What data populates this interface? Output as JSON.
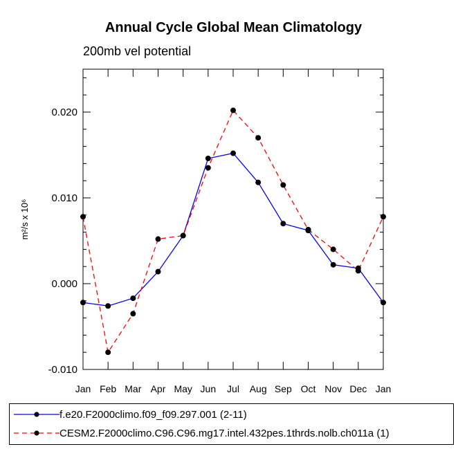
{
  "chart_data": {
    "type": "line",
    "title": "Annual Cycle Global Mean Climatology",
    "subtitle": "200mb vel potential",
    "ylabel": "m²/s x 10⁶",
    "xlabel": "",
    "categories": [
      "Jan",
      "Feb",
      "Mar",
      "Apr",
      "May",
      "Jun",
      "Jul",
      "Aug",
      "Sep",
      "Oct",
      "Nov",
      "Dec",
      "Jan"
    ],
    "ylim": [
      -0.01,
      0.025
    ],
    "yticks": [
      -0.01,
      0.0,
      0.01,
      0.02
    ],
    "ytick_labels": [
      "-0.010",
      "0.000",
      "0.010",
      "0.020"
    ],
    "grid": false,
    "series": [
      {
        "name": "f.e20.F2000climo.f09_f09.297.001 (2-11)",
        "color": "#0000ff",
        "dash": "solid",
        "values": [
          -0.0022,
          -0.0026,
          -0.0017,
          0.0014,
          0.0056,
          0.0146,
          0.0152,
          0.0118,
          0.007,
          0.0062,
          0.0022,
          0.0018,
          -0.0022
        ]
      },
      {
        "name": "CESM2.F2000climo.C96.C96.mg17.intel.432pes.1thrds.nolb.ch011a (1)",
        "color": "#ff0000",
        "dash": "dashed",
        "values": [
          0.0078,
          -0.008,
          -0.0035,
          0.0052,
          0.0056,
          0.0135,
          0.0202,
          0.017,
          0.0115,
          0.0063,
          0.004,
          0.0015,
          0.0078
        ]
      }
    ]
  }
}
